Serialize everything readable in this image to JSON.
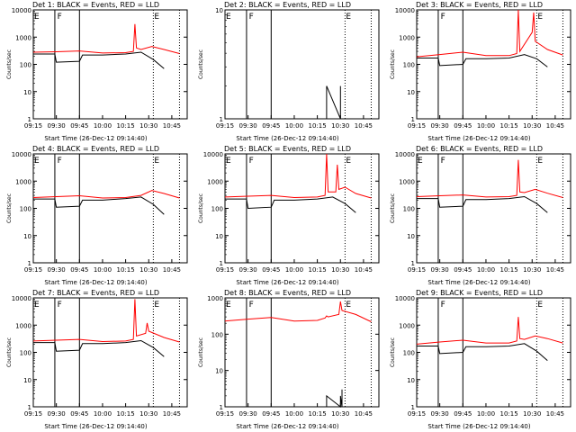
{
  "chart_data": [
    {
      "title": "Det 1: BLACK = Events, RED = LLD",
      "ylabel": "Counts/sec",
      "xlabel": "Start Time (26-Dec-12 09:14:40)",
      "type": "line",
      "x_ticks": [
        "09:15",
        "09:30",
        "09:45",
        "10:00",
        "10:15",
        "10:30",
        "10:45"
      ],
      "y_ticks": [
        "1",
        "10",
        "100",
        "1000",
        "10000"
      ],
      "y_scale": "log",
      "ylim": [
        1,
        10000
      ],
      "flags": [
        {
          "label": "E",
          "x": "09:15"
        },
        {
          "label": "F",
          "x": "09:30"
        },
        {
          "label": "E",
          "x": "10:33"
        }
      ],
      "series": [
        {
          "name": "Events",
          "color": "#000000",
          "x": [
            "09:15",
            "09:29",
            "09:30",
            "09:45",
            "09:47",
            "10:00",
            "10:15",
            "10:25",
            "10:33",
            "10:40"
          ],
          "values": [
            240,
            240,
            120,
            130,
            220,
            220,
            240,
            280,
            150,
            70
          ]
        },
        {
          "name": "LLD",
          "color": "#ff0000",
          "x": [
            "09:15",
            "09:30",
            "09:45",
            "10:00",
            "10:15",
            "10:20",
            "10:21",
            "10:22",
            "10:25",
            "10:32",
            "10:40",
            "10:50"
          ],
          "values": [
            280,
            290,
            310,
            260,
            270,
            300,
            3000,
            400,
            350,
            450,
            350,
            250
          ]
        }
      ]
    },
    {
      "title": "Det 2: BLACK = Events, RED = LLD",
      "ylabel": "Counts/sec",
      "xlabel": "Start Time (26-Dec-12 09:14:40)",
      "type": "line",
      "x_ticks": [
        "09:15",
        "09:30",
        "09:45",
        "10:00",
        "10:15",
        "10:30",
        "10:45"
      ],
      "y_ticks": [
        "1",
        "10"
      ],
      "y_scale": "log",
      "ylim": [
        1,
        10
      ],
      "flags": [
        {
          "label": "E",
          "x": "09:15"
        },
        {
          "label": "F",
          "x": "09:30"
        },
        {
          "label": "E",
          "x": "10:33"
        }
      ],
      "series": [
        {
          "name": "Events",
          "color": "#000000",
          "x": [
            "10:21",
            "10:21",
            "10:30",
            "10:30"
          ],
          "values": [
            1,
            2,
            1,
            2
          ]
        }
      ]
    },
    {
      "title": "Det 3: BLACK = Events, RED = LLD",
      "ylabel": "Counts/sec",
      "xlabel": "Start Time (26-Dec-12 09:14:40)",
      "type": "line",
      "x_ticks": [
        "09:15",
        "09:30",
        "09:45",
        "10:00",
        "10:15",
        "10:30",
        "10:45"
      ],
      "y_ticks": [
        "1",
        "10",
        "100",
        "1000",
        "10000"
      ],
      "y_scale": "log",
      "ylim": [
        1,
        10000
      ],
      "flags": [
        {
          "label": "F",
          "x": "09:30"
        },
        {
          "label": "E",
          "x": "10:33"
        }
      ],
      "series": [
        {
          "name": "Events",
          "color": "#000000",
          "x": [
            "09:15",
            "09:29",
            "09:30",
            "09:45",
            "09:47",
            "10:00",
            "10:15",
            "10:25",
            "10:33",
            "10:40"
          ],
          "values": [
            170,
            170,
            90,
            100,
            160,
            160,
            170,
            230,
            160,
            80
          ]
        },
        {
          "name": "LLD",
          "color": "#ff0000",
          "x": [
            "09:15",
            "09:30",
            "09:45",
            "10:00",
            "10:15",
            "10:20",
            "10:21",
            "10:22",
            "10:30",
            "10:31",
            "10:32",
            "10:40",
            "10:50"
          ],
          "values": [
            190,
            230,
            280,
            210,
            210,
            250,
            10000,
            300,
            1500,
            8000,
            700,
            350,
            220
          ]
        }
      ]
    },
    {
      "title": "Det 4: BLACK = Events, RED = LLD",
      "ylabel": "Counts/sec",
      "xlabel": "Start Time (26-Dec-12 09:14:40)",
      "type": "line",
      "x_ticks": [
        "09:15",
        "09:30",
        "09:45",
        "10:00",
        "10:15",
        "10:30",
        "10:45"
      ],
      "y_ticks": [
        "1",
        "10",
        "100",
        "1000",
        "10000"
      ],
      "y_scale": "log",
      "ylim": [
        1,
        10000
      ],
      "flags": [
        {
          "label": "E",
          "x": "09:15"
        },
        {
          "label": "F",
          "x": "09:30"
        },
        {
          "label": "E",
          "x": "10:33"
        }
      ],
      "series": [
        {
          "name": "Events",
          "color": "#000000",
          "x": [
            "09:15",
            "09:29",
            "09:30",
            "09:45",
            "09:47",
            "10:00",
            "10:15",
            "10:25",
            "10:33",
            "10:40"
          ],
          "values": [
            220,
            220,
            110,
            120,
            200,
            200,
            230,
            260,
            140,
            60
          ]
        },
        {
          "name": "LLD",
          "color": "#ff0000",
          "x": [
            "09:15",
            "09:30",
            "09:45",
            "10:00",
            "10:15",
            "10:25",
            "10:32",
            "10:40",
            "10:50"
          ],
          "values": [
            250,
            270,
            290,
            240,
            250,
            300,
            450,
            350,
            240
          ]
        }
      ]
    },
    {
      "title": "Det 5: BLACK = Events, RED = LLD",
      "ylabel": "Counts/sec",
      "xlabel": "Start Time (26-Dec-12 09:14:40)",
      "type": "line",
      "x_ticks": [
        "09:15",
        "09:30",
        "09:45",
        "10:00",
        "10:15",
        "10:30",
        "10:45"
      ],
      "y_ticks": [
        "1",
        "10",
        "100",
        "1000",
        "10000"
      ],
      "y_scale": "log",
      "ylim": [
        1,
        10000
      ],
      "flags": [
        {
          "label": "E",
          "x": "09:15"
        },
        {
          "label": "F",
          "x": "09:30"
        },
        {
          "label": "E",
          "x": "10:33"
        }
      ],
      "series": [
        {
          "name": "Events",
          "color": "#000000",
          "x": [
            "09:15",
            "09:29",
            "09:30",
            "09:45",
            "09:47",
            "10:00",
            "10:15",
            "10:25",
            "10:33",
            "10:40"
          ],
          "values": [
            220,
            220,
            100,
            110,
            200,
            200,
            220,
            260,
            150,
            70
          ]
        },
        {
          "name": "LLD",
          "color": "#ff0000",
          "x": [
            "09:15",
            "09:30",
            "09:45",
            "10:00",
            "10:15",
            "10:20",
            "10:21",
            "10:22",
            "10:27",
            "10:28",
            "10:29",
            "10:33",
            "10:40",
            "10:50"
          ],
          "values": [
            260,
            280,
            300,
            250,
            260,
            300,
            10000,
            400,
            400,
            4000,
            500,
            600,
            350,
            240
          ]
        }
      ]
    },
    {
      "title": "Det 6: BLACK = Events, RED = LLD",
      "ylabel": "Counts/sec",
      "xlabel": "Start Time (26-Dec-12 09:14:40)",
      "type": "line",
      "x_ticks": [
        "09:15",
        "09:30",
        "09:45",
        "10:00",
        "10:15",
        "10:30",
        "10:45"
      ],
      "y_ticks": [
        "1",
        "10",
        "100",
        "1000",
        "10000"
      ],
      "y_scale": "log",
      "ylim": [
        1,
        10000
      ],
      "flags": [
        {
          "label": "E",
          "x": "09:15"
        },
        {
          "label": "F",
          "x": "09:30"
        },
        {
          "label": "E",
          "x": "10:33"
        }
      ],
      "series": [
        {
          "name": "Events",
          "color": "#000000",
          "x": [
            "09:15",
            "09:29",
            "09:30",
            "09:45",
            "09:47",
            "10:00",
            "10:15",
            "10:25",
            "10:33",
            "10:40"
          ],
          "values": [
            230,
            230,
            110,
            120,
            210,
            210,
            230,
            270,
            150,
            70
          ]
        },
        {
          "name": "LLD",
          "color": "#ff0000",
          "x": [
            "09:15",
            "09:30",
            "09:45",
            "10:00",
            "10:15",
            "10:20",
            "10:21",
            "10:22",
            "10:25",
            "10:32",
            "10:40",
            "10:50"
          ],
          "values": [
            270,
            290,
            310,
            260,
            270,
            300,
            6000,
            400,
            380,
            500,
            360,
            250
          ]
        }
      ]
    },
    {
      "title": "Det 7: BLACK = Events, RED = LLD",
      "ylabel": "Counts/sec",
      "xlabel": "Start Time (26-Dec-12 09:14:40)",
      "type": "line",
      "x_ticks": [
        "09:15",
        "09:30",
        "09:45",
        "10:00",
        "10:15",
        "10:30",
        "10:45"
      ],
      "y_ticks": [
        "1",
        "10",
        "100",
        "1000",
        "10000"
      ],
      "y_scale": "log",
      "ylim": [
        1,
        10000
      ],
      "flags": [
        {
          "label": "E",
          "x": "09:15"
        },
        {
          "label": "F",
          "x": "09:30"
        },
        {
          "label": "E",
          "x": "10:33"
        }
      ],
      "series": [
        {
          "name": "Events",
          "color": "#000000",
          "x": [
            "09:15",
            "09:29",
            "09:30",
            "09:45",
            "09:47",
            "10:00",
            "10:15",
            "10:25",
            "10:33",
            "10:40"
          ],
          "values": [
            230,
            230,
            110,
            120,
            210,
            210,
            230,
            270,
            150,
            70
          ]
        },
        {
          "name": "LLD",
          "color": "#ff0000",
          "x": [
            "09:15",
            "09:30",
            "09:45",
            "10:00",
            "10:15",
            "10:20",
            "10:21",
            "10:22",
            "10:28",
            "10:29",
            "10:30",
            "10:40",
            "10:50"
          ],
          "values": [
            260,
            280,
            300,
            250,
            260,
            300,
            9000,
            400,
            500,
            1200,
            600,
            350,
            240
          ]
        }
      ]
    },
    {
      "title": "Det 8: BLACK = Events, RED = LLD",
      "ylabel": "Counts/sec",
      "xlabel": "Start Time (26-Dec-12 09:14:40)",
      "type": "line",
      "x_ticks": [
        "09:15",
        "09:30",
        "09:45",
        "10:00",
        "10:15",
        "10:30",
        "10:45"
      ],
      "y_ticks": [
        "1",
        "10",
        "100",
        "1000"
      ],
      "y_scale": "log",
      "ylim": [
        1,
        1000
      ],
      "flags": [
        {
          "label": "E",
          "x": "09:15"
        },
        {
          "label": "F",
          "x": "09:30"
        },
        {
          "label": "E",
          "x": "10:33"
        }
      ],
      "series": [
        {
          "name": "Events",
          "color": "#000000",
          "x": [
            "10:21",
            "10:21",
            "10:30",
            "10:30",
            "10:31",
            "10:31"
          ],
          "values": [
            1,
            2,
            1,
            2,
            1,
            3
          ]
        },
        {
          "name": "LLD",
          "color": "#ff0000",
          "x": [
            "09:15",
            "09:30",
            "09:45",
            "10:00",
            "10:15",
            "10:20",
            "10:21",
            "10:22",
            "10:29",
            "10:30",
            "10:31",
            "10:40",
            "10:50"
          ],
          "values": [
            230,
            260,
            290,
            230,
            240,
            280,
            320,
            300,
            350,
            800,
            450,
            350,
            220
          ]
        }
      ]
    },
    {
      "title": "Det 9: BLACK = Events, RED = LLD",
      "ylabel": "Counts/sec",
      "xlabel": "Start Time (26-Dec-12 09:14:40)",
      "type": "line",
      "x_ticks": [
        "09:15",
        "09:30",
        "09:45",
        "10:00",
        "10:15",
        "10:30",
        "10:45"
      ],
      "y_ticks": [
        "1",
        "10",
        "100",
        "1000",
        "10000"
      ],
      "y_scale": "log",
      "ylim": [
        1,
        10000
      ],
      "flags": [
        {
          "label": "F",
          "x": "09:30"
        },
        {
          "label": "E",
          "x": "10:33"
        }
      ],
      "series": [
        {
          "name": "Events",
          "color": "#000000",
          "x": [
            "09:15",
            "09:29",
            "09:30",
            "09:45",
            "09:47",
            "10:00",
            "10:15",
            "10:25",
            "10:33",
            "10:40"
          ],
          "values": [
            170,
            170,
            90,
            100,
            160,
            160,
            170,
            210,
            110,
            50
          ]
        },
        {
          "name": "LLD",
          "color": "#ff0000",
          "x": [
            "09:15",
            "09:30",
            "09:45",
            "10:00",
            "10:15",
            "10:20",
            "10:21",
            "10:22",
            "10:25",
            "10:32",
            "10:40",
            "10:50"
          ],
          "values": [
            200,
            240,
            280,
            220,
            220,
            260,
            2000,
            320,
            300,
            400,
            320,
            220
          ]
        }
      ]
    }
  ]
}
